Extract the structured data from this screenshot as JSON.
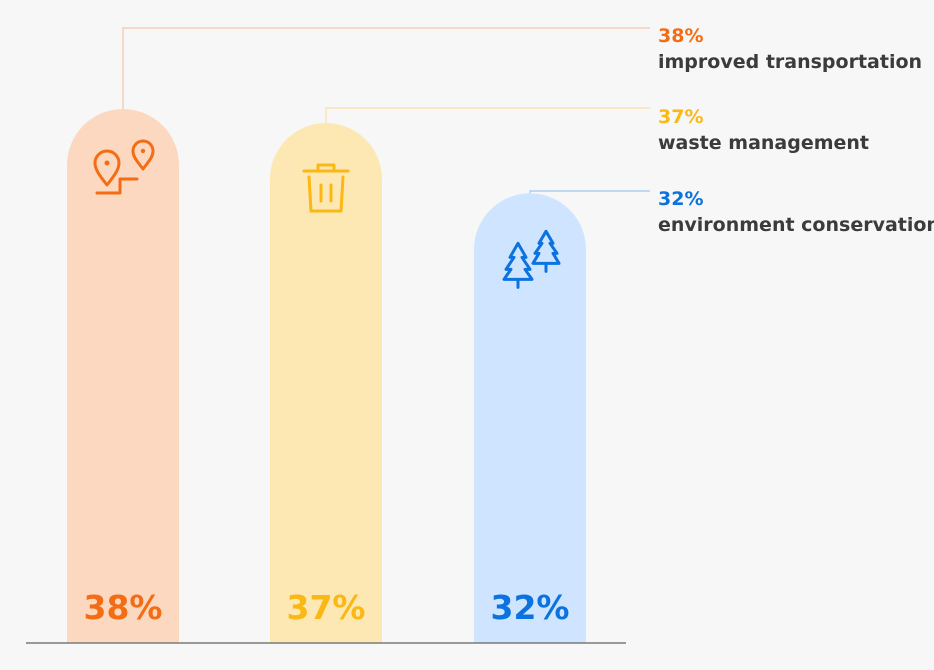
{
  "chart_data": {
    "type": "bar",
    "categories": [
      "improved transportation",
      "waste management",
      "environment conservation"
    ],
    "values": [
      38,
      37,
      32
    ],
    "value_labels": [
      "38%",
      "37%",
      "32%"
    ],
    "ylim": [
      0,
      38
    ],
    "grid": false,
    "legend_position": "right",
    "series_colors": [
      "#f36d14",
      "#fbb714",
      "#0b72e0"
    ],
    "bar_fill_colors": [
      "#fdd8c0",
      "#fde8b3",
      "#cfe5ff"
    ],
    "icons": [
      "map-pins-route-icon",
      "trash-bin-icon",
      "pine-trees-icon"
    ]
  },
  "legend": [
    {
      "pct": "38%",
      "label": "improved transportation",
      "color": "#f36d14"
    },
    {
      "pct": "37%",
      "label": "waste management",
      "color": "#fbb714"
    },
    {
      "pct": "32%",
      "label": "environment conservation",
      "color": "#0b72e0"
    }
  ]
}
